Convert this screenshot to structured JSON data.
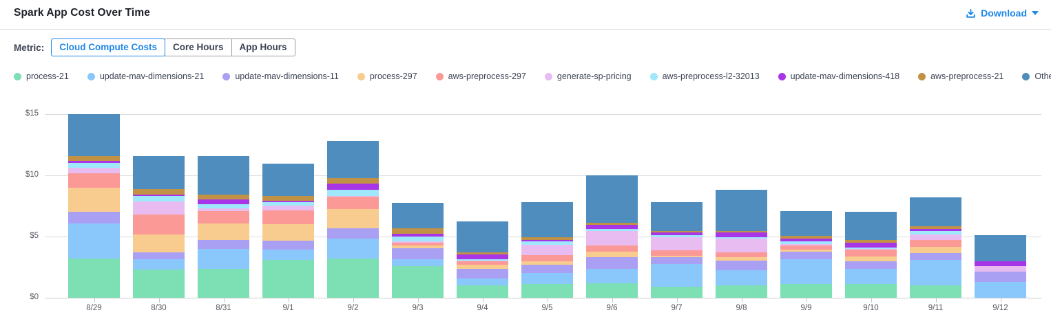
{
  "header": {
    "title": "Spark App Cost Over Time",
    "download_label": "Download"
  },
  "metric": {
    "label": "Metric:",
    "options": [
      "Cloud Compute Costs",
      "Core Hours",
      "App Hours"
    ],
    "selected": "Cloud Compute Costs"
  },
  "colors": {
    "accent_blue": "#1E87E8",
    "gridline": "#dcdcdd",
    "axis_text": "#54565e",
    "legend_text": "#3c4353"
  },
  "chart_data": {
    "type": "bar",
    "stacked": true,
    "title": "Spark App Cost Over Time",
    "xlabel": "",
    "ylabel": "Cloud Compute Costs ($)",
    "ylim": [
      0,
      15
    ],
    "grid": true,
    "legend_position": "top",
    "y_ticks": [
      {
        "value": 0,
        "label": "$0"
      },
      {
        "value": 5,
        "label": "$5"
      },
      {
        "value": 10,
        "label": "$10"
      },
      {
        "value": 15,
        "label": "$15"
      }
    ],
    "x": [
      "8/29",
      "8/30",
      "8/31",
      "9/1",
      "9/2",
      "9/3",
      "9/4",
      "9/5",
      "9/6",
      "9/7",
      "9/8",
      "9/9",
      "9/10",
      "9/11",
      "9/12"
    ],
    "series": [
      {
        "name": "process-21",
        "color": "#7DDFB4",
        "values": [
          3.2,
          2.28,
          2.38,
          3.07,
          3.2,
          2.57,
          1.01,
          1.14,
          1.2,
          0.92,
          1.01,
          1.14,
          1.14,
          1.01,
          0.0
        ]
      },
      {
        "name": "update-mav-dimensions-21",
        "color": "#8AC7FB",
        "values": [
          2.87,
          0.88,
          1.59,
          0.84,
          1.61,
          0.6,
          0.56,
          0.9,
          1.18,
          1.83,
          1.22,
          2.02,
          1.24,
          2.06,
          1.29
        ]
      },
      {
        "name": "update-mav-dimensions-11",
        "color": "#A9A0F3",
        "values": [
          0.93,
          0.56,
          0.75,
          0.75,
          0.85,
          0.87,
          0.81,
          0.66,
          0.93,
          0.56,
          0.79,
          0.6,
          0.6,
          0.56,
          0.84
        ]
      },
      {
        "name": "process-297",
        "color": "#F8CC8E",
        "values": [
          1.97,
          1.46,
          1.35,
          1.35,
          1.59,
          0.22,
          0.32,
          0.28,
          0.45,
          0.12,
          0.29,
          0.19,
          0.41,
          0.51,
          0.0
        ]
      },
      {
        "name": "aws-preprocess-297",
        "color": "#FB9997",
        "values": [
          1.18,
          1.6,
          1.03,
          1.14,
          1.01,
          0.22,
          0.28,
          0.52,
          0.49,
          0.45,
          0.42,
          0.32,
          0.53,
          0.56,
          0.0
        ]
      },
      {
        "name": "generate-sp-pricing",
        "color": "#E8BCF0",
        "values": [
          0.47,
          1.07,
          0.22,
          0.38,
          0.05,
          0.12,
          0.08,
          0.82,
          1.19,
          1.05,
          1.08,
          0.11,
          0.05,
          0.49,
          0.44
        ]
      },
      {
        "name": "aws-preprocess-l2-32013",
        "color": "#9FE8FC",
        "values": [
          0.41,
          0.45,
          0.34,
          0.28,
          0.52,
          0.41,
          0.08,
          0.26,
          0.15,
          0.19,
          0.13,
          0.24,
          0.14,
          0.26,
          0.0
        ]
      },
      {
        "name": "update-mav-dimensions-418",
        "color": "#A836E6",
        "values": [
          0.13,
          0.15,
          0.38,
          0.13,
          0.47,
          0.22,
          0.41,
          0.15,
          0.34,
          0.19,
          0.38,
          0.23,
          0.38,
          0.15,
          0.41
        ]
      },
      {
        "name": "aws-preprocess-21",
        "color": "#C19245",
        "values": [
          0.4,
          0.43,
          0.41,
          0.37,
          0.47,
          0.47,
          0.15,
          0.19,
          0.18,
          0.13,
          0.15,
          0.22,
          0.22,
          0.22,
          0.0
        ]
      },
      {
        "name": "Other",
        "color": "#4E8DBE",
        "values": [
          3.44,
          2.7,
          3.12,
          2.65,
          3.03,
          2.06,
          2.54,
          2.88,
          3.89,
          2.36,
          3.35,
          2.03,
          2.29,
          2.4,
          2.12
        ]
      }
    ]
  }
}
